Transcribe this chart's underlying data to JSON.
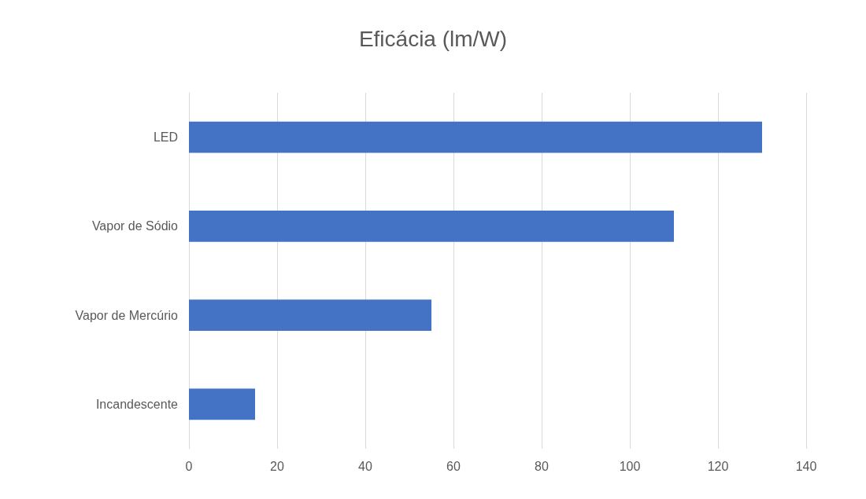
{
  "chart_data": {
    "type": "bar",
    "orientation": "horizontal",
    "title": "Eficácia (lm/W)",
    "categories": [
      "LED",
      "Vapor de Sódio",
      "Vapor de Mercúrio",
      "Incandescente"
    ],
    "values": [
      130,
      110,
      55,
      15
    ],
    "color": "#4472c4",
    "xlim": [
      0,
      140
    ],
    "xticks": [
      0,
      20,
      40,
      60,
      80,
      100,
      120,
      140
    ],
    "grid": "x"
  }
}
